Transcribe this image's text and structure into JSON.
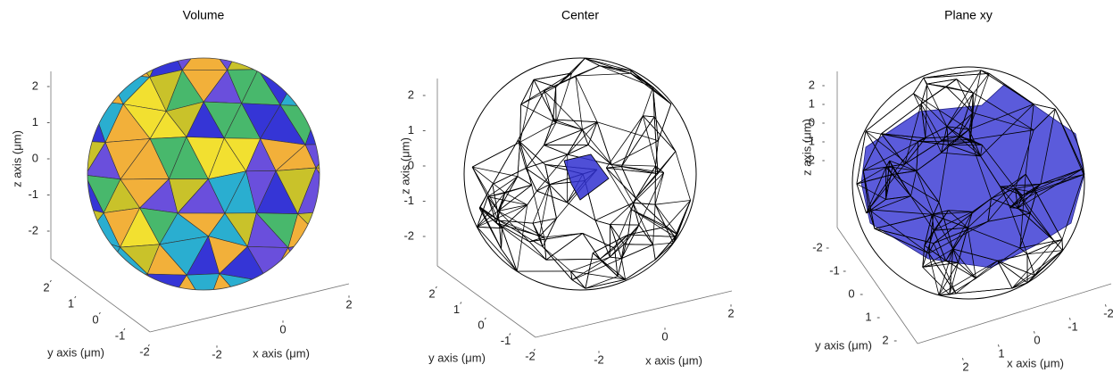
{
  "chart_data": [
    {
      "type": "mesh3d",
      "title": "Volume",
      "xlabel": "x axis (μm)",
      "ylabel": "y axis (μm)",
      "zlabel": "z axis (μm)",
      "xticks": [
        -2,
        0,
        2
      ],
      "yticks": [
        2,
        1,
        0,
        -1,
        -2
      ],
      "zticks": [
        2,
        1,
        0,
        -1,
        -2
      ]
    },
    {
      "type": "mesh3d",
      "title": "Center",
      "xlabel": "x axis (μm)",
      "ylabel": "y axis (μm)",
      "zlabel": "z axis (μm)",
      "xticks": [
        -2,
        0,
        2
      ],
      "yticks": [
        2,
        1,
        0,
        -1,
        -2
      ],
      "zticks": [
        2,
        1,
        0,
        -1,
        -2
      ]
    },
    {
      "type": "mesh3d",
      "title": "Plane xy",
      "xlabel": "x axis (μm)",
      "ylabel": "y axis (μm)",
      "zlabel": "z axis (μm)",
      "xticks": [
        2,
        1,
        0,
        -1,
        -2
      ],
      "yticks": [
        -2,
        -1,
        0,
        1,
        2
      ],
      "zticks": [
        2,
        1,
        0,
        -1,
        -2
      ]
    }
  ]
}
